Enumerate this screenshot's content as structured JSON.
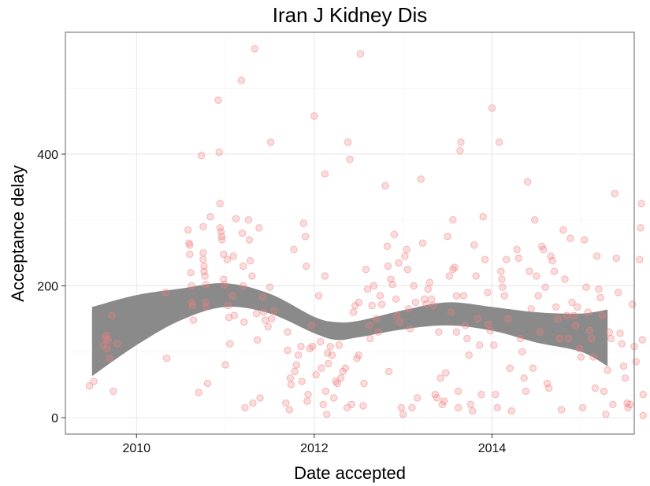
{
  "chart_data": {
    "type": "scatter",
    "title": "Iran J Kidney Dis",
    "xlabel": "Date accepted",
    "ylabel": "Acceptance delay",
    "x_ticks": [
      {
        "value": 2010,
        "label": "2010"
      },
      {
        "value": 2012,
        "label": "2012"
      },
      {
        "value": 2014,
        "label": "2014"
      }
    ],
    "y_ticks": [
      {
        "value": 0,
        "label": "0"
      },
      {
        "value": 200,
        "label": "200"
      },
      {
        "value": 400,
        "label": "400"
      }
    ],
    "xlim": [
      2009.2,
      2015.6
    ],
    "ylim": [
      -25,
      585
    ],
    "grid": true,
    "point_color": "#f08080",
    "band_color": "#8a8a8a",
    "points": [
      [
        2009.47,
        48
      ],
      [
        2009.52,
        55
      ],
      [
        2009.63,
        110
      ],
      [
        2009.65,
        120
      ],
      [
        2009.66,
        125
      ],
      [
        2009.67,
        105
      ],
      [
        2009.68,
        118
      ],
      [
        2009.7,
        90
      ],
      [
        2009.72,
        155
      ],
      [
        2009.74,
        40
      ],
      [
        2009.78,
        112
      ],
      [
        2010.33,
        190
      ],
      [
        2010.34,
        90
      ],
      [
        2010.58,
        285
      ],
      [
        2010.59,
        265
      ],
      [
        2010.6,
        262
      ],
      [
        2010.6,
        248
      ],
      [
        2010.61,
        220
      ],
      [
        2010.62,
        200
      ],
      [
        2010.62,
        175
      ],
      [
        2010.63,
        170
      ],
      [
        2010.64,
        148
      ],
      [
        2010.7,
        38
      ],
      [
        2010.73,
        398
      ],
      [
        2010.75,
        290
      ],
      [
        2010.75,
        250
      ],
      [
        2010.75,
        240
      ],
      [
        2010.76,
        230
      ],
      [
        2010.76,
        222
      ],
      [
        2010.77,
        215
      ],
      [
        2010.78,
        202
      ],
      [
        2010.78,
        175
      ],
      [
        2010.78,
        168
      ],
      [
        2010.8,
        52
      ],
      [
        2010.83,
        305
      ],
      [
        2010.92,
        482
      ],
      [
        2010.93,
        403
      ],
      [
        2010.94,
        325
      ],
      [
        2010.94,
        288
      ],
      [
        2010.95,
        282
      ],
      [
        2010.96,
        275
      ],
      [
        2010.96,
        270
      ],
      [
        2010.98,
        248
      ],
      [
        2010.98,
        210
      ],
      [
        2010.99,
        202
      ],
      [
        2011.0,
        80
      ],
      [
        2011.02,
        240
      ],
      [
        2011.03,
        170
      ],
      [
        2011.04,
        152
      ],
      [
        2011.05,
        112
      ],
      [
        2011.08,
        185
      ],
      [
        2011.09,
        245
      ],
      [
        2011.1,
        155
      ],
      [
        2011.12,
        302
      ],
      [
        2011.18,
        512
      ],
      [
        2011.19,
        280
      ],
      [
        2011.2,
        230
      ],
      [
        2011.2,
        200
      ],
      [
        2011.21,
        145
      ],
      [
        2011.22,
        15
      ],
      [
        2011.26,
        300
      ],
      [
        2011.27,
        270
      ],
      [
        2011.28,
        238
      ],
      [
        2011.3,
        215
      ],
      [
        2011.31,
        22
      ],
      [
        2011.33,
        560
      ],
      [
        2011.35,
        158
      ],
      [
        2011.36,
        118
      ],
      [
        2011.38,
        288
      ],
      [
        2011.39,
        30
      ],
      [
        2011.42,
        183
      ],
      [
        2011.43,
        160
      ],
      [
        2011.45,
        148
      ],
      [
        2011.48,
        138
      ],
      [
        2011.5,
        198
      ],
      [
        2011.51,
        418
      ],
      [
        2011.52,
        150
      ],
      [
        2011.55,
        162
      ],
      [
        2011.68,
        22
      ],
      [
        2011.7,
        130
      ],
      [
        2011.7,
        102
      ],
      [
        2011.72,
        12
      ],
      [
        2011.73,
        60
      ],
      [
        2011.74,
        50
      ],
      [
        2011.77,
        255
      ],
      [
        2011.78,
        70
      ],
      [
        2011.8,
        80
      ],
      [
        2011.82,
        95
      ],
      [
        2011.85,
        108
      ],
      [
        2011.86,
        55
      ],
      [
        2011.88,
        295
      ],
      [
        2011.9,
        275
      ],
      [
        2011.91,
        230
      ],
      [
        2011.92,
        25
      ],
      [
        2011.93,
        35
      ],
      [
        2011.95,
        105
      ],
      [
        2011.97,
        140
      ],
      [
        2011.98,
        108
      ],
      [
        2012.0,
        458
      ],
      [
        2012.02,
        65
      ],
      [
        2012.05,
        185
      ],
      [
        2012.07,
        115
      ],
      [
        2012.08,
        75
      ],
      [
        2012.1,
        20
      ],
      [
        2012.12,
        370
      ],
      [
        2012.12,
        215
      ],
      [
        2012.13,
        40
      ],
      [
        2012.14,
        5
      ],
      [
        2012.15,
        98
      ],
      [
        2012.16,
        82
      ],
      [
        2012.18,
        108
      ],
      [
        2012.2,
        95
      ],
      [
        2012.22,
        30
      ],
      [
        2012.24,
        55
      ],
      [
        2012.26,
        52
      ],
      [
        2012.28,
        110
      ],
      [
        2012.3,
        60
      ],
      [
        2012.32,
        70
      ],
      [
        2012.35,
        75
      ],
      [
        2012.37,
        15
      ],
      [
        2012.38,
        418
      ],
      [
        2012.4,
        392
      ],
      [
        2012.42,
        20
      ],
      [
        2012.44,
        160
      ],
      [
        2012.46,
        170
      ],
      [
        2012.48,
        90
      ],
      [
        2012.5,
        95
      ],
      [
        2012.5,
        175
      ],
      [
        2012.52,
        552
      ],
      [
        2012.55,
        18
      ],
      [
        2012.56,
        52
      ],
      [
        2012.58,
        225
      ],
      [
        2012.6,
        195
      ],
      [
        2012.62,
        140
      ],
      [
        2012.63,
        120
      ],
      [
        2012.65,
        170
      ],
      [
        2012.67,
        200
      ],
      [
        2012.7,
        150
      ],
      [
        2012.72,
        130
      ],
      [
        2012.74,
        185
      ],
      [
        2012.76,
        172
      ],
      [
        2012.8,
        352
      ],
      [
        2012.82,
        260
      ],
      [
        2012.83,
        230
      ],
      [
        2012.84,
        70
      ],
      [
        2012.86,
        210
      ],
      [
        2012.88,
        202
      ],
      [
        2012.9,
        278
      ],
      [
        2012.92,
        180
      ],
      [
        2012.93,
        155
      ],
      [
        2012.95,
        235
      ],
      [
        2012.96,
        145
      ],
      [
        2012.98,
        15
      ],
      [
        2013.0,
        5
      ],
      [
        2013.02,
        245
      ],
      [
        2013.04,
        255
      ],
      [
        2013.05,
        225
      ],
      [
        2013.06,
        165
      ],
      [
        2013.08,
        135
      ],
      [
        2013.1,
        15
      ],
      [
        2013.12,
        200
      ],
      [
        2013.14,
        175
      ],
      [
        2013.16,
        30
      ],
      [
        2013.2,
        362
      ],
      [
        2013.22,
        265
      ],
      [
        2013.24,
        180
      ],
      [
        2013.26,
        172
      ],
      [
        2013.28,
        195
      ],
      [
        2013.3,
        205
      ],
      [
        2013.32,
        180
      ],
      [
        2013.34,
        170
      ],
      [
        2013.36,
        35
      ],
      [
        2013.38,
        30
      ],
      [
        2013.4,
        130
      ],
      [
        2013.42,
        60
      ],
      [
        2013.44,
        20
      ],
      [
        2013.46,
        25
      ],
      [
        2013.48,
        68
      ],
      [
        2013.5,
        275
      ],
      [
        2013.52,
        215
      ],
      [
        2013.54,
        160
      ],
      [
        2013.56,
        225
      ],
      [
        2013.56,
        300
      ],
      [
        2013.58,
        228
      ],
      [
        2013.6,
        185
      ],
      [
        2013.6,
        130
      ],
      [
        2013.62,
        40
      ],
      [
        2013.62,
        15
      ],
      [
        2013.64,
        405
      ],
      [
        2013.65,
        418
      ],
      [
        2013.68,
        185
      ],
      [
        2013.7,
        140
      ],
      [
        2013.72,
        120
      ],
      [
        2013.74,
        95
      ],
      [
        2013.76,
        20
      ],
      [
        2013.78,
        10
      ],
      [
        2013.8,
        262
      ],
      [
        2013.82,
        215
      ],
      [
        2013.84,
        150
      ],
      [
        2013.86,
        110
      ],
      [
        2013.88,
        35
      ],
      [
        2013.9,
        305
      ],
      [
        2013.92,
        240
      ],
      [
        2013.95,
        190
      ],
      [
        2013.96,
        142
      ],
      [
        2013.98,
        132
      ],
      [
        2014.0,
        470
      ],
      [
        2014.02,
        110
      ],
      [
        2014.04,
        35
      ],
      [
        2014.06,
        15
      ],
      [
        2014.08,
        418
      ],
      [
        2014.1,
        222
      ],
      [
        2014.11,
        210
      ],
      [
        2014.12,
        198
      ],
      [
        2014.14,
        185
      ],
      [
        2014.16,
        240
      ],
      [
        2014.18,
        150
      ],
      [
        2014.2,
        75
      ],
      [
        2014.22,
        10
      ],
      [
        2014.28,
        255
      ],
      [
        2014.3,
        242
      ],
      [
        2014.32,
        120
      ],
      [
        2014.34,
        100
      ],
      [
        2014.36,
        60
      ],
      [
        2014.38,
        40
      ],
      [
        2014.4,
        358
      ],
      [
        2014.42,
        222
      ],
      [
        2014.44,
        165
      ],
      [
        2014.46,
        75
      ],
      [
        2014.48,
        300
      ],
      [
        2014.5,
        215
      ],
      [
        2014.52,
        185
      ],
      [
        2014.54,
        130
      ],
      [
        2014.56,
        260
      ],
      [
        2014.58,
        255
      ],
      [
        2014.6,
        198
      ],
      [
        2014.62,
        52
      ],
      [
        2014.64,
        45
      ],
      [
        2014.66,
        245
      ],
      [
        2014.68,
        238
      ],
      [
        2014.7,
        222
      ],
      [
        2014.72,
        168
      ],
      [
        2014.74,
        150
      ],
      [
        2014.76,
        120
      ],
      [
        2014.78,
        12
      ],
      [
        2014.8,
        285
      ],
      [
        2014.82,
        210
      ],
      [
        2014.84,
        155
      ],
      [
        2014.86,
        120
      ],
      [
        2014.88,
        272
      ],
      [
        2014.9,
        175
      ],
      [
        2014.92,
        155
      ],
      [
        2014.94,
        140
      ],
      [
        2014.96,
        168
      ],
      [
        2014.98,
        105
      ],
      [
        2015.0,
        92
      ],
      [
        2015.02,
        15
      ],
      [
        2015.04,
        270
      ],
      [
        2015.06,
        198
      ],
      [
        2015.08,
        160
      ],
      [
        2015.1,
        132
      ],
      [
        2015.12,
        120
      ],
      [
        2015.14,
        92
      ],
      [
        2015.16,
        45
      ],
      [
        2015.18,
        245
      ],
      [
        2015.2,
        195
      ],
      [
        2015.22,
        182
      ],
      [
        2015.24,
        155
      ],
      [
        2015.26,
        40
      ],
      [
        2015.28,
        5
      ],
      [
        2015.3,
        72
      ],
      [
        2015.32,
        130
      ],
      [
        2015.34,
        120
      ],
      [
        2015.36,
        20
      ],
      [
        2015.38,
        340
      ],
      [
        2015.4,
        242
      ],
      [
        2015.42,
        190
      ],
      [
        2015.44,
        128
      ],
      [
        2015.46,
        112
      ],
      [
        2015.48,
        78
      ],
      [
        2015.5,
        60
      ],
      [
        2015.52,
        22
      ],
      [
        2015.53,
        15
      ],
      [
        2015.55,
        20
      ],
      [
        2015.58,
        172
      ],
      [
        2015.6,
        108
      ],
      [
        2015.62,
        85
      ],
      [
        2015.66,
        240
      ],
      [
        2015.67,
        288
      ],
      [
        2015.68,
        325
      ],
      [
        2015.69,
        118
      ],
      [
        2015.7,
        35
      ],
      [
        2015.7,
        3
      ]
    ],
    "band": {
      "x": [
        2009.5,
        2010.0,
        2010.5,
        2011.0,
        2011.5,
        2012.0,
        2012.25,
        2012.5,
        2013.0,
        2013.5,
        2014.0,
        2014.5,
        2015.0,
        2015.3
      ],
      "lower": [
        63,
        110,
        148,
        168,
        158,
        128,
        118,
        122,
        134,
        140,
        132,
        114,
        100,
        78
      ],
      "upper": [
        168,
        186,
        196,
        204,
        188,
        153,
        145,
        147,
        163,
        175,
        168,
        160,
        158,
        164
      ]
    }
  }
}
